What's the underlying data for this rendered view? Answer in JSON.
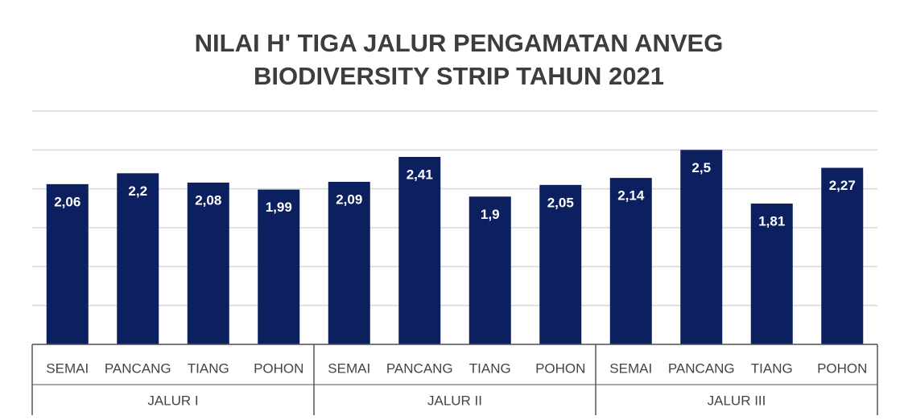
{
  "chart_data": {
    "type": "bar",
    "title": [
      "NILAI H' TIGA JALUR PENGAMATAN ANVEG",
      "BIODIVERSITY STRIP TAHUN 2021"
    ],
    "categories": [
      "SEMAI",
      "PANCANG",
      "TIANG",
      "POHON",
      "SEMAI",
      "PANCANG",
      "TIANG",
      "POHON",
      "SEMAI",
      "PANCANG",
      "TIANG",
      "POHON"
    ],
    "groups": [
      "JALUR I",
      "JALUR II",
      "JALUR III"
    ],
    "values": [
      2.06,
      2.2,
      2.08,
      1.99,
      2.09,
      2.41,
      1.9,
      2.05,
      2.14,
      2.5,
      1.81,
      2.27
    ],
    "value_labels": [
      "2,06",
      "2,2",
      "2,08",
      "1,99",
      "2,09",
      "2,41",
      "1,9",
      "2,05",
      "2,14",
      "2,5",
      "1,81",
      "2,27"
    ],
    "color": "#0c1f5e",
    "ylim": [
      0,
      3
    ],
    "yticks": [
      0,
      0.5,
      1,
      1.5,
      2,
      2.5,
      3
    ],
    "grid": true
  }
}
